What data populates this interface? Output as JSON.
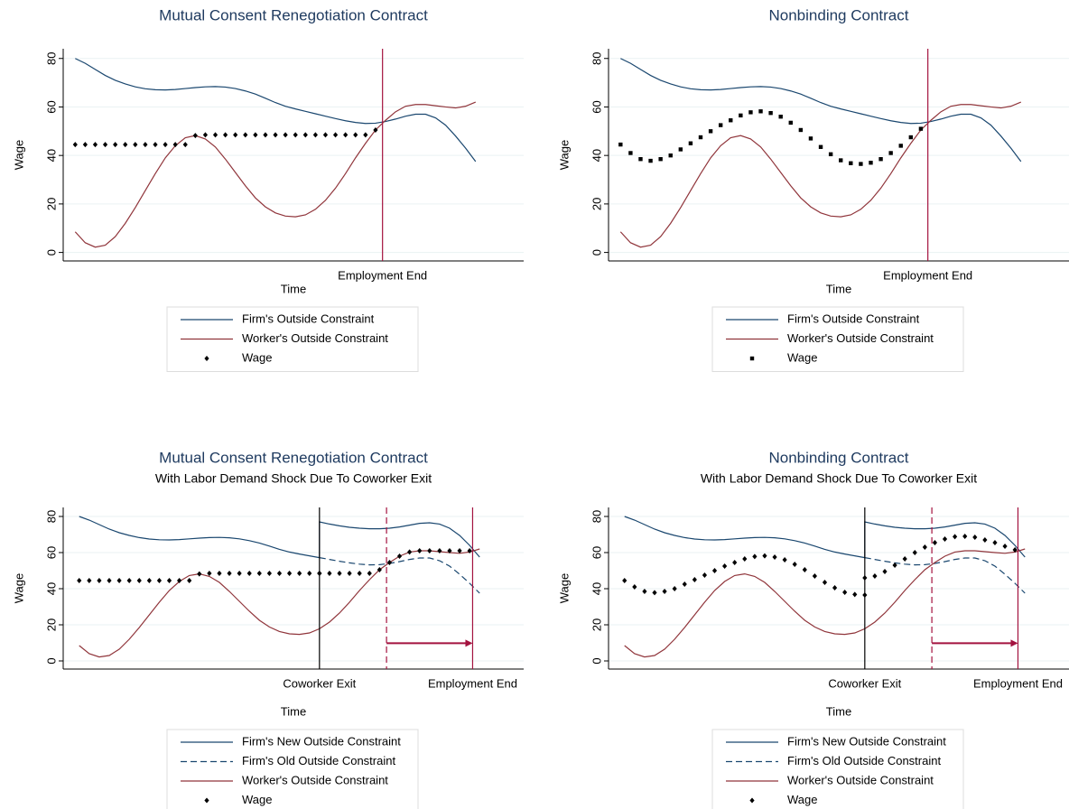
{
  "chart_data": [
    {
      "type": "line",
      "title": "Mutual Consent Renegotiation Contract",
      "x_label": "Time",
      "y_label": "Wage",
      "x": [
        0,
        1,
        2,
        3,
        4,
        5,
        6,
        7,
        8,
        9,
        10,
        11,
        12,
        13,
        14,
        15,
        16,
        17,
        18,
        19,
        20,
        21,
        22,
        23,
        24,
        25,
        26,
        27,
        28,
        29,
        30,
        31,
        32,
        33,
        34,
        35,
        36,
        37,
        38,
        39,
        40
      ],
      "xlim": [
        -1.2,
        44.8
      ],
      "ylim": [
        -3.5,
        84
      ],
      "yticks": [
        0,
        20,
        40,
        60,
        80
      ],
      "grid": true,
      "legend": "bottom",
      "series": [
        {
          "name": "Firm's Outside Constraint",
          "color": "#1a476f",
          "style": "solid",
          "values": [
            80,
            78,
            75.5,
            73,
            71,
            69.5,
            68.3,
            67.5,
            67.1,
            67,
            67.2,
            67.6,
            68,
            68.3,
            68.4,
            68.2,
            67.6,
            66.6,
            65.3,
            63.6,
            61.8,
            60.3,
            59.2,
            58.2,
            57.2,
            56.2,
            55.2,
            54.3,
            53.6,
            53.2,
            53.3,
            54,
            55,
            56.2,
            57,
            57,
            55.5,
            52.5,
            48,
            43,
            37.5
          ]
        },
        {
          "name": "Worker's Outside Constraint",
          "color": "#90353b",
          "style": "solid",
          "values": [
            8.5,
            4,
            2.2,
            3,
            6.5,
            12,
            18.5,
            25.5,
            32.5,
            39,
            44,
            47.3,
            48.2,
            46.8,
            43.5,
            38.5,
            33,
            27.5,
            22.5,
            18.8,
            16.3,
            15,
            14.7,
            15.5,
            17.8,
            21.5,
            26.5,
            32.5,
            39,
            45,
            50.5,
            54.5,
            58,
            60.3,
            61,
            61,
            60.5,
            60,
            59.6,
            60.3,
            62
          ]
        },
        {
          "name": "Wage",
          "color": "#000000",
          "style": "markers",
          "marker": "diamond",
          "values": [
            44.5,
            44.5,
            44.5,
            44.5,
            44.5,
            44.5,
            44.5,
            44.5,
            44.5,
            44.5,
            44.5,
            44.5,
            48.2,
            48.5,
            48.5,
            48.5,
            48.5,
            48.5,
            48.5,
            48.5,
            48.5,
            48.5,
            48.5,
            48.5,
            48.5,
            48.5,
            48.5,
            48.5,
            48.5,
            48.5,
            50.5,
            null,
            null,
            null,
            null,
            null,
            null,
            null,
            null,
            null,
            null
          ]
        }
      ],
      "vlines": [
        {
          "x": 30.7,
          "label": "Employment End",
          "color": "#a3123f",
          "style": "solid"
        }
      ]
    },
    {
      "type": "line",
      "title": "Nonbinding Contract",
      "x_label": "Time",
      "y_label": "Wage",
      "x": [
        0,
        1,
        2,
        3,
        4,
        5,
        6,
        7,
        8,
        9,
        10,
        11,
        12,
        13,
        14,
        15,
        16,
        17,
        18,
        19,
        20,
        21,
        22,
        23,
        24,
        25,
        26,
        27,
        28,
        29,
        30,
        31,
        32,
        33,
        34,
        35,
        36,
        37,
        38,
        39,
        40
      ],
      "xlim": [
        -1.2,
        44.8
      ],
      "ylim": [
        -3.5,
        84
      ],
      "yticks": [
        0,
        20,
        40,
        60,
        80
      ],
      "grid": true,
      "legend": "bottom",
      "series": [
        {
          "name": "Firm's Outside Constraint",
          "color": "#1a476f",
          "style": "solid",
          "values": [
            80,
            78,
            75.5,
            73,
            71,
            69.5,
            68.3,
            67.5,
            67.1,
            67,
            67.2,
            67.6,
            68,
            68.3,
            68.4,
            68.2,
            67.6,
            66.6,
            65.3,
            63.6,
            61.8,
            60.3,
            59.2,
            58.2,
            57.2,
            56.2,
            55.2,
            54.3,
            53.6,
            53.2,
            53.3,
            54,
            55,
            56.2,
            57,
            57,
            55.5,
            52.5,
            48,
            43,
            37.5
          ]
        },
        {
          "name": "Worker's Outside Constraint",
          "color": "#90353b",
          "style": "solid",
          "values": [
            8.5,
            4,
            2.2,
            3,
            6.5,
            12,
            18.5,
            25.5,
            32.5,
            39,
            44,
            47.3,
            48.2,
            46.8,
            43.5,
            38.5,
            33,
            27.5,
            22.5,
            18.8,
            16.3,
            15,
            14.7,
            15.5,
            17.8,
            21.5,
            26.5,
            32.5,
            39,
            45,
            50.5,
            54.5,
            58,
            60.3,
            61,
            61,
            60.5,
            60,
            59.6,
            60.3,
            62
          ]
        },
        {
          "name": "Wage",
          "color": "#000000",
          "style": "markers",
          "marker": "square",
          "values": [
            44.5,
            41,
            38.5,
            37.8,
            38.5,
            40,
            42.5,
            45,
            47.5,
            50,
            52.5,
            54.5,
            56.5,
            57.8,
            58.2,
            57.5,
            56,
            53.5,
            50.5,
            47,
            43.5,
            40.5,
            38,
            36.8,
            36.5,
            37,
            38.5,
            41,
            44,
            47.5,
            51,
            null,
            null,
            null,
            null,
            null,
            null,
            null,
            null,
            null,
            null
          ]
        }
      ],
      "vlines": [
        {
          "x": 30.7,
          "label": "Employment End",
          "color": "#a3123f",
          "style": "solid"
        }
      ]
    },
    {
      "type": "line",
      "title": "Mutual Consent Renegotiation Contract",
      "subtitle": "With Labor Demand Shock Due To Coworker Exit",
      "x_label": "Time",
      "y_label": "Wage",
      "x": [
        0,
        1,
        2,
        3,
        4,
        5,
        6,
        7,
        8,
        9,
        10,
        11,
        12,
        13,
        14,
        15,
        16,
        17,
        18,
        19,
        20,
        21,
        22,
        23,
        24,
        24,
        25,
        26,
        27,
        28,
        29,
        30,
        31,
        32,
        33,
        34,
        35,
        36,
        37,
        38,
        39,
        40
      ],
      "xlim": [
        -1.6,
        44.4
      ],
      "ylim": [
        -4.5,
        85
      ],
      "yticks": [
        0,
        20,
        40,
        60,
        80
      ],
      "grid": true,
      "legend": "bottom",
      "arrow": true,
      "series": [
        {
          "name": "Firm's New Outside Constraint",
          "color": "#1a476f",
          "style": "solid",
          "values": [
            80,
            78,
            75.5,
            73,
            71,
            69.5,
            68.3,
            67.5,
            67.1,
            67,
            67.2,
            67.6,
            68,
            68.3,
            68.4,
            68.2,
            67.6,
            66.6,
            65.3,
            63.6,
            61.8,
            60.3,
            59.2,
            58.2,
            57.2,
            77,
            75.8,
            74.8,
            74,
            73.5,
            73.2,
            73.2,
            73.5,
            74.2,
            75.2,
            76.2,
            76.5,
            75.8,
            73.5,
            69.5,
            64,
            57.5
          ]
        },
        {
          "name": "Firm's Old Outside Constraint",
          "color": "#1a476f",
          "style": "dashed",
          "values": [
            null,
            null,
            null,
            null,
            null,
            null,
            null,
            null,
            null,
            null,
            null,
            null,
            null,
            null,
            null,
            null,
            null,
            null,
            null,
            null,
            null,
            null,
            null,
            null,
            null,
            57.2,
            56.2,
            55.2,
            54.3,
            53.6,
            53.2,
            53.3,
            54,
            55,
            56.2,
            57,
            57,
            55.5,
            52.5,
            48,
            43,
            37.5
          ]
        },
        {
          "name": "Worker's Outside Constraint",
          "color": "#90353b",
          "style": "solid",
          "values": [
            8.5,
            4,
            2.2,
            3,
            6.5,
            12,
            18.5,
            25.5,
            32.5,
            39,
            44,
            47.3,
            48.2,
            46.8,
            43.5,
            38.5,
            33,
            27.5,
            22.5,
            18.8,
            16.3,
            15,
            14.7,
            15.5,
            17.8,
            17.8,
            21.5,
            26.5,
            32.5,
            39,
            45,
            50.5,
            54.5,
            58,
            60.3,
            61,
            61,
            60.5,
            60,
            59.6,
            60.3,
            62
          ]
        },
        {
          "name": "Wage",
          "color": "#000000",
          "style": "markers",
          "marker": "diamond",
          "values": [
            44.5,
            44.5,
            44.5,
            44.5,
            44.5,
            44.5,
            44.5,
            44.5,
            44.5,
            44.5,
            44.5,
            44.5,
            48.2,
            48.5,
            48.5,
            48.5,
            48.5,
            48.5,
            48.5,
            48.5,
            48.5,
            48.5,
            48.5,
            48.5,
            48.5,
            48.5,
            48.5,
            48.5,
            48.5,
            48.5,
            48.5,
            50.5,
            54.5,
            58,
            60.3,
            61,
            61,
            61,
            61,
            61,
            61,
            null
          ]
        }
      ],
      "vlines": [
        {
          "x": 24,
          "label": "Coworker Exit",
          "color": "#000000",
          "style": "solid"
        },
        {
          "x": 30.7,
          "color": "#a3123f",
          "style": "dashed"
        },
        {
          "x": 39.3,
          "label": "Employment End",
          "color": "#a3123f",
          "style": "solid"
        }
      ]
    },
    {
      "type": "line",
      "title": "Nonbinding Contract",
      "subtitle": "With Labor Demand Shock Due To Coworker Exit",
      "x_label": "Time",
      "y_label": "Wage",
      "x": [
        0,
        1,
        2,
        3,
        4,
        5,
        6,
        7,
        8,
        9,
        10,
        11,
        12,
        13,
        14,
        15,
        16,
        17,
        18,
        19,
        20,
        21,
        22,
        23,
        24,
        24,
        25,
        26,
        27,
        28,
        29,
        30,
        31,
        32,
        33,
        34,
        35,
        36,
        37,
        38,
        39,
        40
      ],
      "xlim": [
        -1.6,
        44.4
      ],
      "ylim": [
        -4.5,
        85
      ],
      "yticks": [
        0,
        20,
        40,
        60,
        80
      ],
      "grid": true,
      "legend": "bottom",
      "arrow": true,
      "series": [
        {
          "name": "Firm's New Outside Constraint",
          "color": "#1a476f",
          "style": "solid",
          "values": [
            80,
            78,
            75.5,
            73,
            71,
            69.5,
            68.3,
            67.5,
            67.1,
            67,
            67.2,
            67.6,
            68,
            68.3,
            68.4,
            68.2,
            67.6,
            66.6,
            65.3,
            63.6,
            61.8,
            60.3,
            59.2,
            58.2,
            57.2,
            77,
            75.8,
            74.8,
            74,
            73.5,
            73.2,
            73.2,
            73.5,
            74.2,
            75.2,
            76.2,
            76.5,
            75.8,
            73.5,
            69.5,
            64,
            57.5
          ]
        },
        {
          "name": "Firm's Old Outside Constraint",
          "color": "#1a476f",
          "style": "dashed",
          "values": [
            null,
            null,
            null,
            null,
            null,
            null,
            null,
            null,
            null,
            null,
            null,
            null,
            null,
            null,
            null,
            null,
            null,
            null,
            null,
            null,
            null,
            null,
            null,
            null,
            null,
            57.2,
            56.2,
            55.2,
            54.3,
            53.6,
            53.2,
            53.3,
            54,
            55,
            56.2,
            57,
            57,
            55.5,
            52.5,
            48,
            43,
            37.5
          ]
        },
        {
          "name": "Worker's Outside Constraint",
          "color": "#90353b",
          "style": "solid",
          "values": [
            8.5,
            4,
            2.2,
            3,
            6.5,
            12,
            18.5,
            25.5,
            32.5,
            39,
            44,
            47.3,
            48.2,
            46.8,
            43.5,
            38.5,
            33,
            27.5,
            22.5,
            18.8,
            16.3,
            15,
            14.7,
            15.5,
            17.8,
            17.8,
            21.5,
            26.5,
            32.5,
            39,
            45,
            50.5,
            54.5,
            58,
            60.3,
            61,
            61,
            60.5,
            60,
            59.6,
            60.3,
            62
          ]
        },
        {
          "name": "Wage",
          "color": "#000000",
          "style": "markers",
          "marker": "diamond",
          "values": [
            44.5,
            41,
            38.5,
            37.8,
            38.5,
            40,
            42.5,
            45,
            47.5,
            50,
            52.5,
            54.5,
            56.5,
            57.8,
            58.2,
            57.5,
            56,
            53.5,
            50.5,
            47,
            43.5,
            40.5,
            38,
            36.8,
            36.5,
            46,
            47,
            49.5,
            53,
            56.5,
            60,
            63,
            65.5,
            67.5,
            68.8,
            69,
            68.5,
            67,
            65.5,
            63.5,
            61.5,
            null
          ]
        }
      ],
      "vlines": [
        {
          "x": 24,
          "label": "Coworker Exit",
          "color": "#000000",
          "style": "solid"
        },
        {
          "x": 30.7,
          "color": "#a3123f",
          "style": "dashed"
        },
        {
          "x": 39.3,
          "label": "Employment End",
          "color": "#a3123f",
          "style": "solid"
        }
      ]
    }
  ]
}
